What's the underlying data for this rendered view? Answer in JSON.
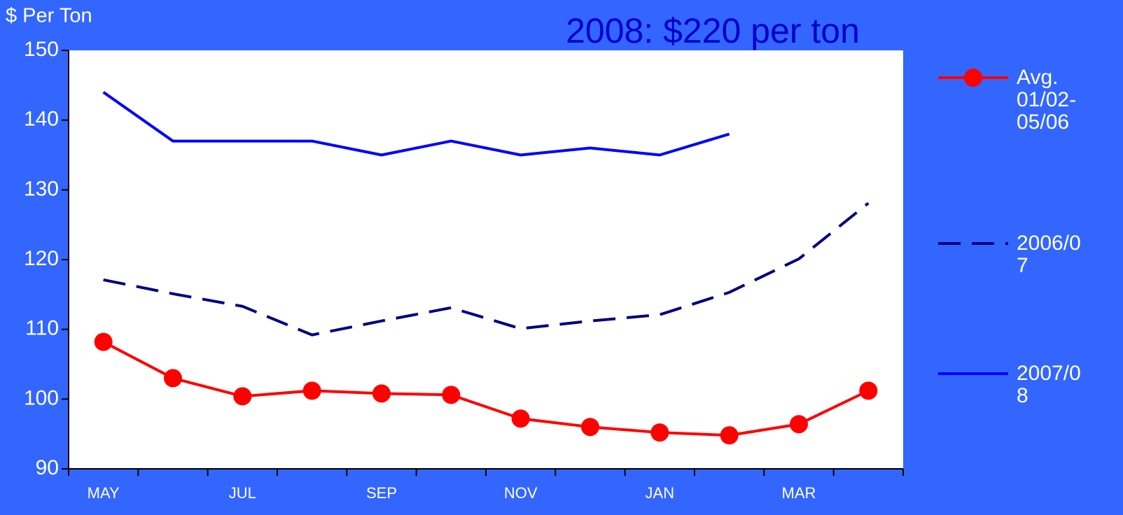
{
  "chart_data": {
    "type": "line",
    "title": "2008: $220 per ton",
    "y_axis_label": "$ Per Ton",
    "categories": [
      "MAY",
      null,
      "JUL",
      null,
      "SEP",
      null,
      "NOV",
      null,
      "JAN",
      null,
      "MAR",
      null
    ],
    "series": [
      {
        "name": "Avg. 01/02-05/06",
        "color": "#ff0000",
        "dash": false,
        "marker": true,
        "values": [
          108.2,
          103,
          100.4,
          101.2,
          100.8,
          100.6,
          97.2,
          96,
          95.2,
          94.8,
          96.4,
          101.2
        ]
      },
      {
        "name": "2006/07",
        "color": "#000080",
        "dash": true,
        "marker": false,
        "values": [
          117.1,
          115.1,
          113.3,
          109.2,
          111.2,
          113.1,
          110.1,
          111.2,
          112.1,
          115.3,
          120.1,
          128.1
        ]
      },
      {
        "name": "2007/08",
        "color": "#0000ff",
        "dash": false,
        "marker": false,
        "values": [
          144,
          137,
          137,
          137,
          135,
          137,
          135,
          136,
          135,
          138,
          null,
          null
        ]
      }
    ],
    "ylim": [
      90,
      150
    ],
    "yticks": [
      90,
      100,
      110,
      120,
      130,
      140,
      150
    ],
    "grid": false,
    "legend": "right"
  }
}
